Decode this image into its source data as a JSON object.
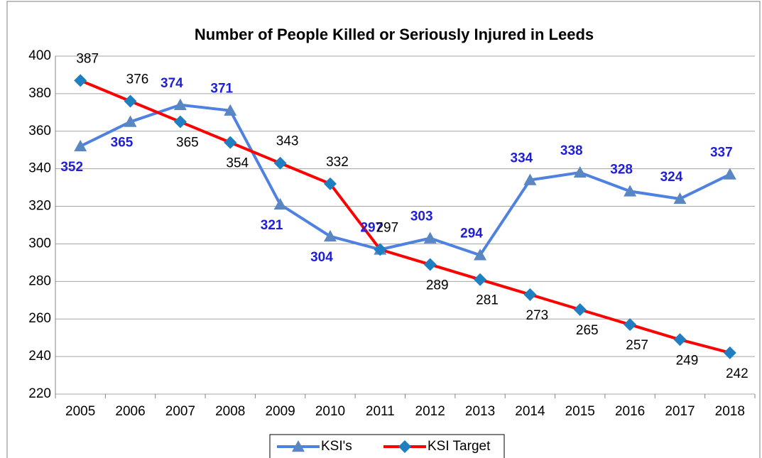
{
  "chart_data": {
    "type": "line",
    "title": "Number of People Killed or Seriously Injured in Leeds",
    "categories": [
      "2005",
      "2006",
      "2007",
      "2008",
      "2009",
      "2010",
      "2011",
      "2012",
      "2013",
      "2014",
      "2015",
      "2016",
      "2017",
      "2018"
    ],
    "series": [
      {
        "name": "KSI's",
        "color": "#4f81e0",
        "marker_color": "#5a86c2",
        "label_color": "#1f1fd6",
        "marker": "triangle",
        "values": [
          352,
          365,
          374,
          371,
          321,
          304,
          297,
          303,
          294,
          334,
          338,
          328,
          324,
          337
        ]
      },
      {
        "name": "KSI Target",
        "color": "#ff0000",
        "marker_color": "#1f7fc0",
        "label_color": "#000000",
        "marker": "diamond",
        "values": [
          387,
          376,
          365,
          354,
          343,
          332,
          297,
          289,
          281,
          273,
          265,
          257,
          249,
          242
        ]
      }
    ],
    "ylim": [
      220,
      400
    ],
    "yticks": [
      220,
      240,
      260,
      280,
      300,
      320,
      340,
      360,
      380,
      400
    ],
    "grid": true,
    "legend": "bottom"
  }
}
